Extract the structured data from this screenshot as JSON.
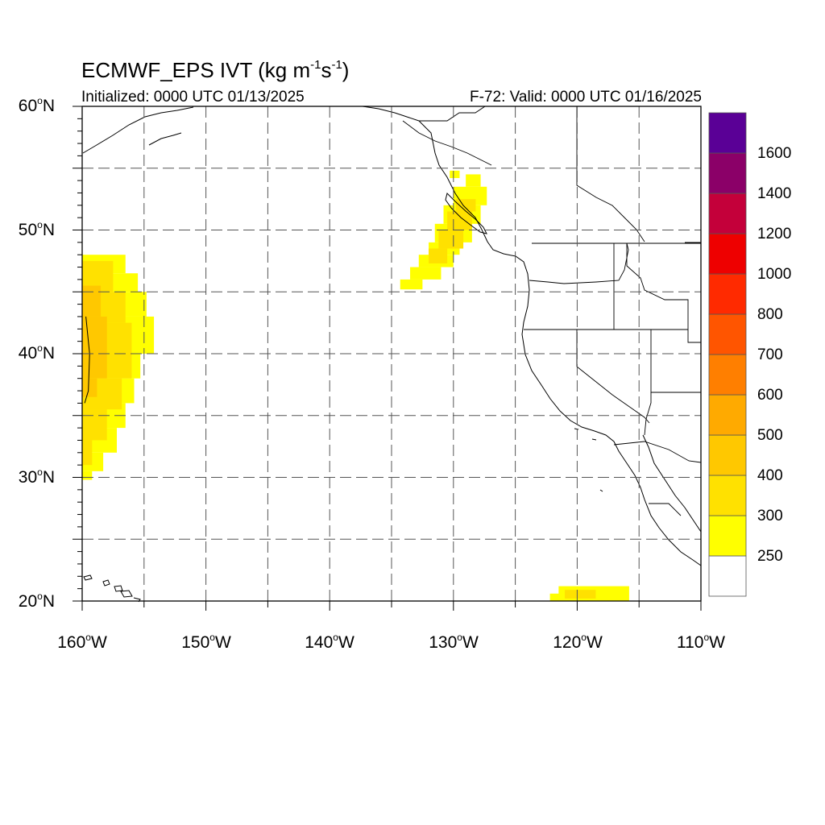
{
  "title": {
    "main": "ECMWF_EPS IVT (kg m",
    "exp1": "-1",
    "mid": "s",
    "exp2": "-1",
    "close": ")"
  },
  "initialized": "Initialized: 0000 UTC 01/13/2025",
  "valid": "F-72: Valid: 0000 UTC 01/16/2025",
  "lat_labels": [
    {
      "num": "60",
      "deg": "o",
      "hem": "N"
    },
    {
      "num": "50",
      "deg": "o",
      "hem": "N"
    },
    {
      "num": "40",
      "deg": "o",
      "hem": "N"
    },
    {
      "num": "30",
      "deg": "o",
      "hem": "N"
    },
    {
      "num": "20",
      "deg": "o",
      "hem": "N"
    }
  ],
  "lon_labels": [
    {
      "num": "160",
      "deg": "o",
      "hem": "W"
    },
    {
      "num": "150",
      "deg": "o",
      "hem": "W"
    },
    {
      "num": "140",
      "deg": "o",
      "hem": "W"
    },
    {
      "num": "130",
      "deg": "o",
      "hem": "W"
    },
    {
      "num": "120",
      "deg": "o",
      "hem": "W"
    },
    {
      "num": "110",
      "deg": "o",
      "hem": "W"
    }
  ],
  "map_extent": {
    "lon_min": -160,
    "lon_max": -110,
    "lat_min": 20,
    "lat_max": 60
  },
  "colorbar": {
    "labels": [
      "250",
      "300",
      "400",
      "500",
      "600",
      "700",
      "800",
      "1000",
      "1200",
      "1400",
      "1600"
    ],
    "colors_bottom_to_top": [
      "#ffffff",
      "#ffff00",
      "#ffe100",
      "#ffc800",
      "#ffaa00",
      "#ff7f00",
      "#ff5500",
      "#ff2a00",
      "#ee0000",
      "#c4003a",
      "#8b0068",
      "#5a0096"
    ]
  },
  "ivt_features": [
    {
      "region": "central Pacific plume",
      "lat_range": [
        30,
        48
      ],
      "lon_range": [
        -160,
        -155
      ],
      "max_level": "400-500"
    },
    {
      "region": "Vancouver Island plume",
      "lat_range": [
        45.5,
        54.5
      ],
      "lon_range": [
        -134,
        -127.5
      ],
      "max_level": "300-400"
    },
    {
      "region": "southern band",
      "lat_range": [
        20,
        21
      ],
      "lon_range": [
        -122,
        -116
      ],
      "max_level": "300-400"
    }
  ]
}
